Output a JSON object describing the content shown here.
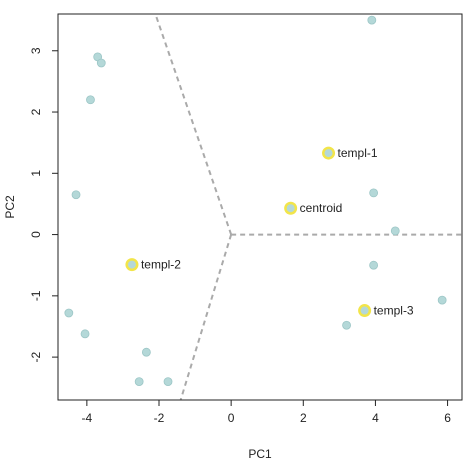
{
  "chart_data": {
    "type": "scatter",
    "title": "",
    "xlabel": "PC1",
    "ylabel": "PC2",
    "xlim": [
      -4.8,
      6.4
    ],
    "ylim": [
      -2.7,
      3.6
    ],
    "x_ticks": [
      -4,
      -2,
      0,
      2,
      4,
      6
    ],
    "y_ticks": [
      -2,
      -1,
      0,
      1,
      2,
      3
    ],
    "grid": false,
    "points": [
      {
        "x": 3.9,
        "y": 3.5
      },
      {
        "x": -3.7,
        "y": 2.9
      },
      {
        "x": -3.6,
        "y": 2.8
      },
      {
        "x": -3.9,
        "y": 2.2
      },
      {
        "x": -4.3,
        "y": 0.65
      },
      {
        "x": 3.95,
        "y": 0.68
      },
      {
        "x": 4.55,
        "y": 0.06
      },
      {
        "x": 3.95,
        "y": -0.5
      },
      {
        "x": 5.85,
        "y": -1.07
      },
      {
        "x": -4.5,
        "y": -1.28
      },
      {
        "x": -4.05,
        "y": -1.62
      },
      {
        "x": 3.2,
        "y": -1.48
      },
      {
        "x": -2.35,
        "y": -1.92
      },
      {
        "x": -2.55,
        "y": -2.4
      },
      {
        "x": -1.75,
        "y": -2.4
      }
    ],
    "labeled_points": [
      {
        "label": "templ-1",
        "x": 2.7,
        "y": 1.33
      },
      {
        "label": "centroid",
        "x": 1.65,
        "y": 0.43
      },
      {
        "label": "templ-2",
        "x": -2.75,
        "y": -0.49
      },
      {
        "label": "templ-3",
        "x": 3.7,
        "y": -1.24
      }
    ],
    "boundaries": [
      {
        "from": [
          0,
          0
        ],
        "to": [
          -2.1,
          3.6
        ]
      },
      {
        "from": [
          0,
          0
        ],
        "to": [
          6.4,
          0
        ]
      },
      {
        "from": [
          0,
          0
        ],
        "to": [
          -1.4,
          -2.7
        ]
      }
    ],
    "colors": {
      "point_fill": "#b4d8d8",
      "point_stroke": "#9cc6c6",
      "highlight_ring": "#f2e54a",
      "boundary": "#aaaaaa",
      "axis": "#222222"
    }
  }
}
